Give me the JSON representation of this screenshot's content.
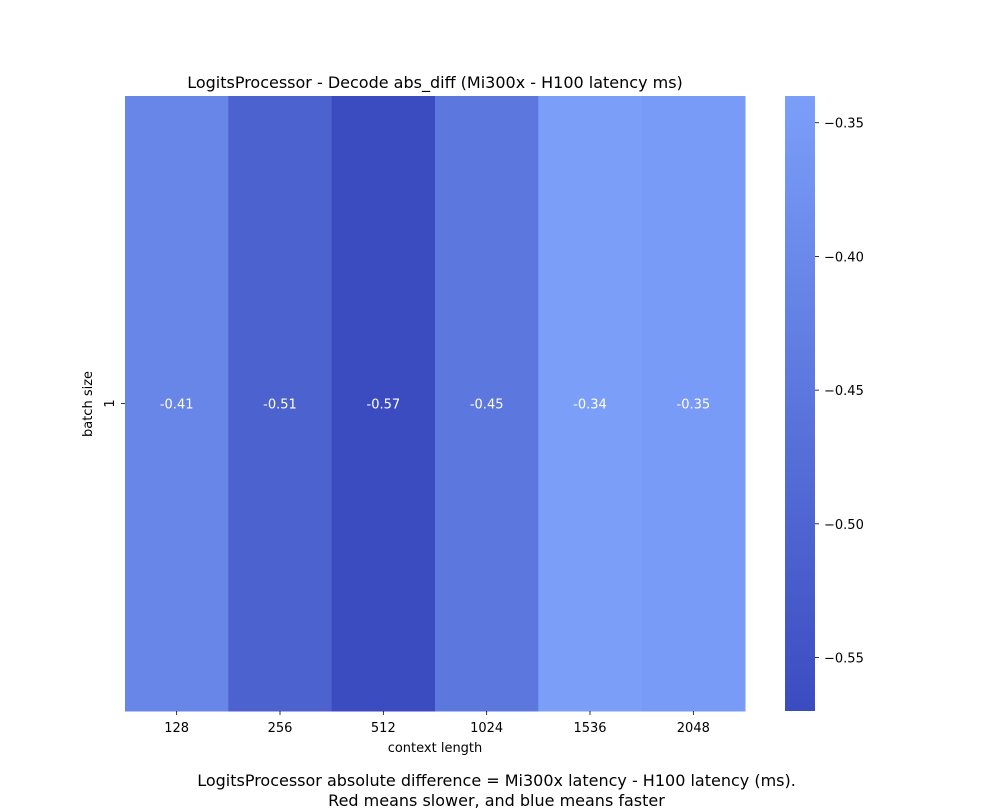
{
  "chart_data": {
    "type": "heatmap",
    "title": "LogitsProcessor - Decode abs_diff (Mi300x - H100 latency ms)",
    "xlabel": "context length",
    "ylabel": "batch size",
    "x_categories": [
      "128",
      "256",
      "512",
      "1024",
      "1536",
      "2048"
    ],
    "y_categories": [
      "1"
    ],
    "values": [
      [
        -0.41,
        -0.51,
        -0.57,
        -0.45,
        -0.34,
        -0.35
      ]
    ],
    "value_labels": [
      [
        "-0.41",
        "-0.51",
        "-0.57",
        "-0.45",
        "-0.34",
        "-0.35"
      ]
    ],
    "colorbar": {
      "range": [
        -0.57,
        -0.34
      ],
      "ticks": [
        -0.35,
        -0.4,
        -0.45,
        -0.5,
        -0.55
      ],
      "tick_labels": [
        "−0.35",
        "−0.40",
        "−0.45",
        "−0.50",
        "−0.55"
      ],
      "color_low": "#3b4cc0",
      "color_high": "#7b9ff9"
    }
  },
  "caption": {
    "line1": "LogitsProcessor absolute difference = Mi300x latency - H100 latency (ms).",
    "line2": "Red means slower, and blue means faster"
  }
}
